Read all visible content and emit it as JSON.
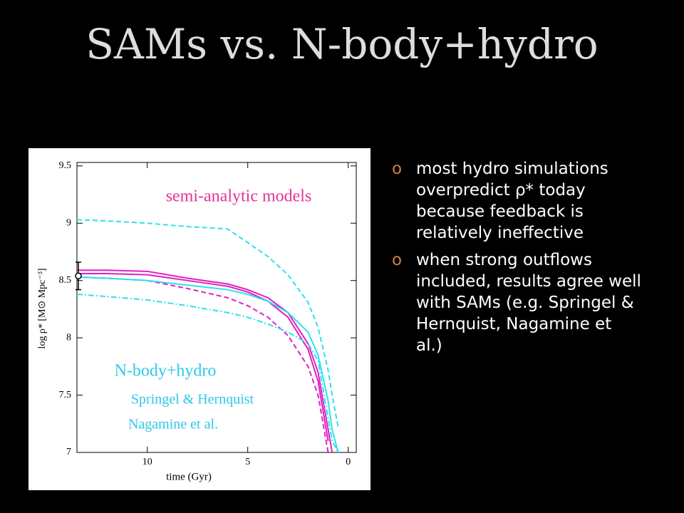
{
  "title": "SAMs vs. N-body+hydro",
  "bullets": [
    "most hydro simulations overpredict ρ* today because feedback is relatively ineffective",
    "when strong outflows included, results agree well with SAMs (e.g. Springel & Hernquist, Nagamine et al.)"
  ],
  "bullet_marker": "o",
  "chart_data": {
    "type": "line",
    "x_label": "time (Gyr)",
    "y_label": "log ρ* [M⊙ Mpc⁻³]",
    "x": [
      13.5,
      12,
      10,
      8,
      6,
      5,
      4,
      3,
      2,
      1.5,
      1,
      0.8,
      0.5
    ],
    "xlim": [
      13.5,
      -0.4
    ],
    "ylim": [
      7,
      9.53
    ],
    "xticks": [
      10,
      5,
      0
    ],
    "yticks": [
      7,
      7.5,
      8,
      8.5,
      9,
      9.5
    ],
    "series": [
      {
        "color": "#2ee0f0",
        "dash": "dashed",
        "values": [
          9.03,
          9.02,
          9.0,
          8.97,
          8.95,
          8.83,
          8.71,
          8.55,
          8.31,
          8.09,
          7.72,
          7.5,
          7.22
        ]
      },
      {
        "color": "#e020c0",
        "dash": "solid",
        "values": [
          8.59,
          8.59,
          8.58,
          8.52,
          8.47,
          8.42,
          8.35,
          8.22,
          7.95,
          7.7,
          7.2,
          7.0,
          null
        ]
      },
      {
        "color": "#e020c0",
        "dash": "solid",
        "values": [
          8.56,
          8.56,
          8.55,
          8.5,
          8.45,
          8.4,
          8.32,
          8.18,
          7.9,
          7.62,
          7.1,
          null,
          null
        ]
      },
      {
        "color": "#e020c0",
        "dash": "dashed",
        "values": [
          8.53,
          8.52,
          8.5,
          8.43,
          8.35,
          8.28,
          8.18,
          8.02,
          7.75,
          7.5,
          7.0,
          null,
          null
        ]
      },
      {
        "color": "#2ee0f0",
        "dash": "solid",
        "values": [
          8.53,
          8.52,
          8.5,
          8.46,
          8.42,
          8.38,
          8.32,
          8.22,
          8.05,
          7.85,
          7.45,
          7.2,
          7.0
        ]
      },
      {
        "color": "#2ee0f0",
        "dash": "dashdot",
        "values": [
          8.38,
          8.36,
          8.33,
          8.28,
          8.22,
          8.18,
          8.12,
          8.05,
          7.95,
          7.8,
          7.3,
          7.1,
          7.0
        ]
      }
    ],
    "point": {
      "x": 13.5,
      "value": 8.54,
      "error": 0.12
    },
    "annotations": [
      {
        "text": "semi-analytic  models",
        "color": "#e8329b"
      },
      {
        "text": "N-body+hydro",
        "color": "#2ec8e8"
      },
      {
        "text": "Springel & Hernquist",
        "color": "#2ec8e8"
      },
      {
        "text": "Nagamine et al.",
        "color": "#2ec8e8"
      }
    ]
  }
}
